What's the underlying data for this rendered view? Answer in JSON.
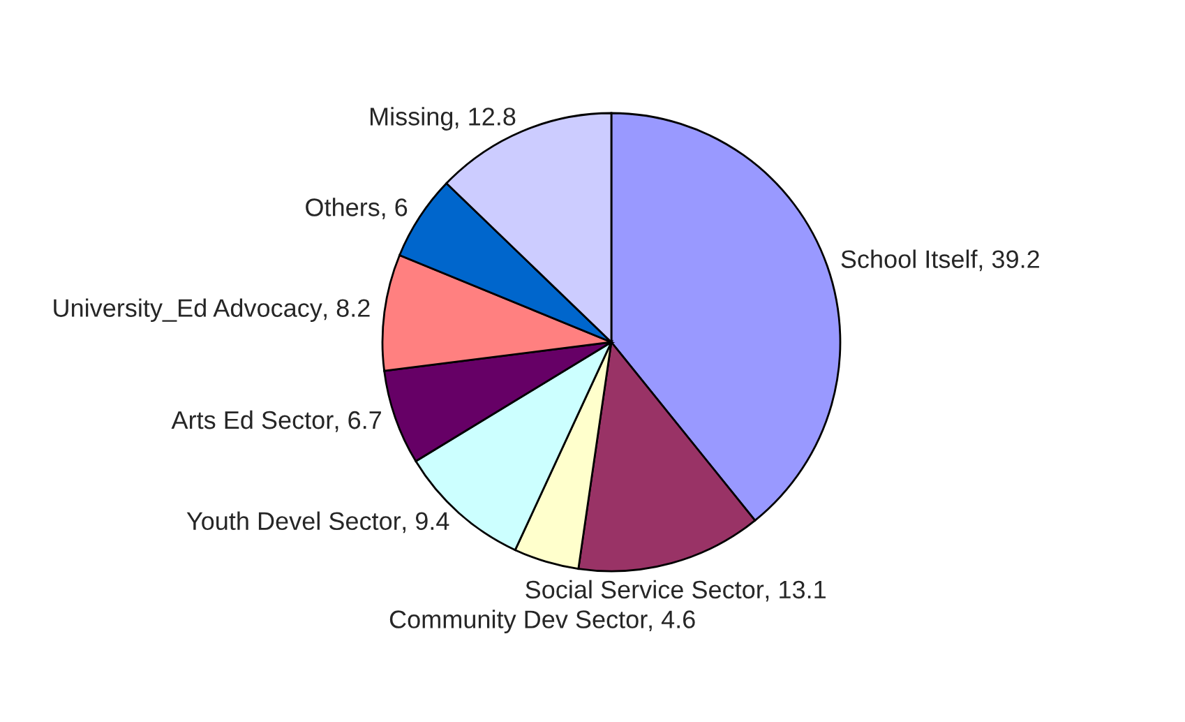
{
  "chart_data": {
    "type": "pie",
    "value_labels": [
      ", 39.2",
      ", 13.1",
      ", 4.6",
      ", 9.4",
      ", 6.7",
      ", 8.2",
      ", 6",
      ", 12.8"
    ],
    "categories": [
      "School Itself",
      "Social Service Sector",
      "Community Dev Sector",
      "Youth Devel Sector",
      "Arts Ed Sector",
      "University_Ed Advocacy",
      "Others",
      "Missing"
    ],
    "values": [
      39.2,
      13.1,
      4.6,
      9.4,
      6.7,
      8.2,
      6,
      12.8
    ],
    "colors": [
      "#9999ff",
      "#993366",
      "#ffffcc",
      "#ccffff",
      "#660066",
      "#ff8080",
      "#0066cc",
      "#ccccff"
    ]
  }
}
